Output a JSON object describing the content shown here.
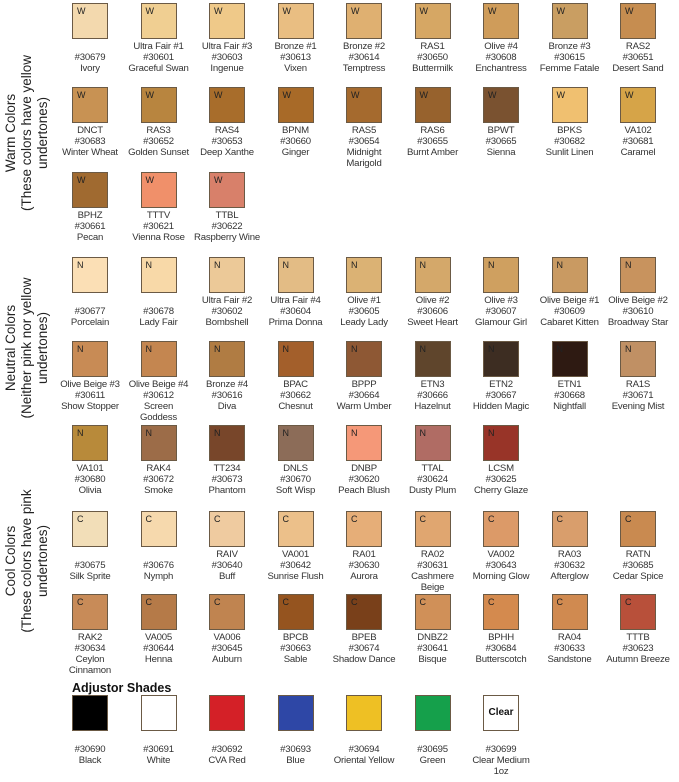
{
  "sections": [
    {
      "title": "Warm Colors",
      "subtitle": "(These colors have yellow undertones)",
      "tag": "W",
      "rows": [
        [
          [
            "",
            "#30679",
            "Ivory",
            "#f3d9ae"
          ],
          [
            "Ultra Fair #1",
            "#30601",
            "Graceful Swan",
            "#f0cf92"
          ],
          [
            "Ultra Fair #3",
            "#30603",
            "Ingenue",
            "#efc989"
          ],
          [
            "Bronze #1",
            "#30613",
            "Vixen",
            "#e9be82"
          ],
          [
            "Bronze #2",
            "#30614",
            "Temptress",
            "#dfb071"
          ],
          [
            "RAS1",
            "#30650",
            "Buttermilk",
            "#d6a764"
          ],
          [
            "Olive #4",
            "#30608",
            "Enchantress",
            "#cf9c5a"
          ],
          [
            "Bronze #3",
            "#30615",
            "Femme Fatale",
            "#c99e62"
          ],
          [
            "RAS2",
            "#30651",
            "Desert Sand",
            "#c68d50"
          ]
        ],
        [
          [
            "DNCT",
            "#30683",
            "Winter Wheat",
            "#c89253"
          ],
          [
            "RAS3",
            "#30652",
            "Golden Sunset",
            "#b8853f"
          ],
          [
            "RAS4",
            "#30653",
            "Deep Xanthe",
            "#a86d2b"
          ],
          [
            "BPNM",
            "#30660",
            "Ginger",
            "#a86a28"
          ],
          [
            "RAS5",
            "#30654",
            "Midnight Marigold",
            "#a56a2e"
          ],
          [
            "RAS6",
            "#30655",
            "Burnt Amber",
            "#97622d"
          ],
          [
            "BPWT",
            "#30665",
            "Sienna",
            "#7a5230"
          ],
          [
            "BPKS",
            "#30682",
            "Sunlit Linen",
            "#f0c070"
          ],
          [
            "VA102",
            "#30681",
            "Caramel",
            "#d6a448"
          ]
        ],
        [
          [
            "BPHZ",
            "#30661",
            "Pecan",
            "#a06a30"
          ],
          [
            "TTTV",
            "#30621",
            "Vienna Rose",
            "#f0906a"
          ],
          [
            "TTBL",
            "#30622",
            "Raspberry Wine",
            "#d8806a"
          ]
        ]
      ]
    },
    {
      "title": "Neutral Colors",
      "subtitle": "(Neither pink nor yellow undertones)",
      "tag": "N",
      "rows": [
        [
          [
            "",
            "#30677",
            "Porcelain",
            "#fbdfb5"
          ],
          [
            "",
            "#30678",
            "Lady Fair",
            "#f8d9a8"
          ],
          [
            "Ultra Fair #2",
            "#30602",
            "Bombshell",
            "#ecc998"
          ],
          [
            "Ultra Fair #4",
            "#30604",
            "Prima Donna",
            "#e3bc85"
          ],
          [
            "Olive #1",
            "#30605",
            "Leady Lady",
            "#dbb274"
          ],
          [
            "Olive #2",
            "#30606",
            "Sweet Heart",
            "#d4a86a"
          ],
          [
            "Olive #3",
            "#30607",
            "Glamour Girl",
            "#cfa060"
          ],
          [
            "Olive Beige #1",
            "#30609",
            "Cabaret Kitten",
            "#c99a62"
          ],
          [
            "Olive Beige #2",
            "#30610",
            "Broadway Star",
            "#c8935e"
          ]
        ],
        [
          [
            "Olive Beige #3",
            "#30611",
            "Show Stopper",
            "#c88b55"
          ],
          [
            "Olive Beige #4",
            "#30612",
            "Screen Goddess",
            "#c48650"
          ],
          [
            "Bronze #4",
            "#30616",
            "Diva",
            "#b07c43"
          ],
          [
            "BPAC",
            "#30662",
            "Chesnut",
            "#a35f2b"
          ],
          [
            "BPPP",
            "#30664",
            "Warm Umber",
            "#8e5834"
          ],
          [
            "ETN3",
            "#30666",
            "Hazelnut",
            "#5f452c"
          ],
          [
            "ETN2",
            "#30667",
            "Hidden Magic",
            "#3d2d22"
          ],
          [
            "ETN1",
            "#30668",
            "Nightfall",
            "#2e1a12"
          ],
          [
            "RA1S",
            "#30671",
            "Evening Mist",
            "#c09064"
          ]
        ],
        [
          [
            "VA101",
            "#30680",
            "Olivia",
            "#b88a3a"
          ],
          [
            "RAK4",
            "#30672",
            "Smoke",
            "#9c6c48"
          ],
          [
            "TT234",
            "#30673",
            "Phantom",
            "#78462a"
          ],
          [
            "DNLS",
            "#30670",
            "Soft Wisp",
            "#8c6c58"
          ],
          [
            "DNBP",
            "#30620",
            "Peach Blush",
            "#f59878"
          ],
          [
            "TTAL",
            "#30624",
            "Dusty Plum",
            "#b06c64"
          ],
          [
            "LCSM",
            "#30625",
            "Cherry Glaze",
            "#983428"
          ]
        ]
      ]
    },
    {
      "title": "Cool Colors",
      "subtitle": "(These colors have pink undertones)",
      "tag": "C",
      "rows": [
        [
          [
            "",
            "#30675",
            "Silk Sprite",
            "#f2deb8"
          ],
          [
            "",
            "#30676",
            "Nymph",
            "#f6d9ad"
          ],
          [
            "RAIV",
            "#30640",
            "Buff",
            "#efcba0"
          ],
          [
            "VA001",
            "#30642",
            "Sunrise Flush",
            "#ecc08a"
          ],
          [
            "RA01",
            "#30630",
            "Aurora",
            "#e6ae78"
          ],
          [
            "RA02",
            "#30631",
            "Cashmere Beige",
            "#e0a670"
          ],
          [
            "VA002",
            "#30643",
            "Morning Glow",
            "#dc9a68"
          ],
          [
            "RA03",
            "#30632",
            "Afterglow",
            "#d99e6c"
          ],
          [
            "RATN",
            "#30685",
            "Cedar Spice",
            "#c98a50"
          ]
        ],
        [
          [
            "RAK2",
            "#30634",
            "Ceylon Cinnamon",
            "#c88b58"
          ],
          [
            "VA005",
            "#30644",
            "Henna",
            "#b57a48"
          ],
          [
            "VA006",
            "#30645",
            "Auburn",
            "#c08450"
          ],
          [
            "BPCB",
            "#30663",
            "Sable",
            "#95541f"
          ],
          [
            "BPEB",
            "#30674",
            "Shadow Dance",
            "#79401a"
          ],
          [
            "DNBZ2",
            "#30641",
            "Bisque",
            "#d09058"
          ],
          [
            "BPHH",
            "#30684",
            "Butterscotch",
            "#d48a4e"
          ],
          [
            "RA04",
            "#30633",
            "Sandstone",
            "#d08a50"
          ],
          [
            "TTTB",
            "#30623",
            "Autumn Breeze",
            "#b8503a"
          ]
        ]
      ]
    }
  ],
  "adjustor": {
    "title": "Adjustor Shades",
    "clear_text": "Clear",
    "items": [
      [
        "",
        "#30690",
        "Black",
        "#000000"
      ],
      [
        "",
        "#30691",
        "White",
        "#ffffff"
      ],
      [
        "",
        "#30692",
        "CVA Red",
        "#d42027"
      ],
      [
        "",
        "#30693",
        "Blue",
        "#2e47a6"
      ],
      [
        "",
        "#30694",
        "Oriental Yellow",
        "#eec024"
      ],
      [
        "",
        "#30695",
        "Green",
        "#15a04b"
      ],
      [
        "",
        "#30699",
        "Clear Medium 1oz",
        "#ffffff"
      ]
    ]
  }
}
